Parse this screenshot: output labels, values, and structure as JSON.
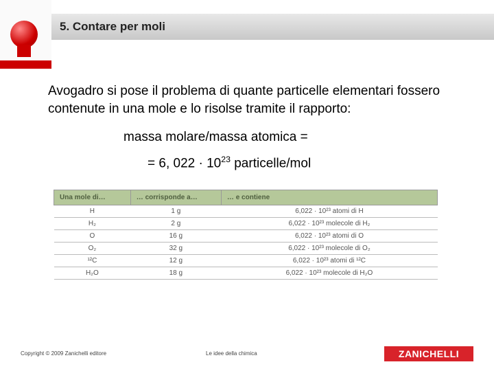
{
  "header": {
    "title": "5. Contare per moli"
  },
  "content": {
    "body_text": "Avogadro si pose il problema di quante particelle elementari fossero contenute in una mole e lo risolse tramite il rapporto:",
    "formula1": "massa molare/massa atomica =",
    "formula2_prefix": "= 6, 022 · 10",
    "formula2_exp": "23",
    "formula2_suffix": " particelle/mol"
  },
  "table": {
    "headers": [
      "Una mole di…",
      "… corrisponde a…",
      "… e contiene"
    ],
    "rows": [
      {
        "c1": "H",
        "c2": "1 g",
        "c3": "6,022 · 10²³ atomi di H"
      },
      {
        "c1": "H₂",
        "c2": "2 g",
        "c3": "6,022 · 10²³ molecole di H₂"
      },
      {
        "c1": "O",
        "c2": "16 g",
        "c3": "6,022 · 10²³ atomi di O"
      },
      {
        "c1": "O₂",
        "c2": "32 g",
        "c3": "6,022 · 10²³ molecole di O₂"
      },
      {
        "c1": "¹²C",
        "c2": "12 g",
        "c3": "6,022 · 10²³ atomi di ¹²C"
      },
      {
        "c1": "H₂O",
        "c2": "18 g",
        "c3": "6,022 · 10²³ molecole di H₂O"
      }
    ],
    "header_bg": "#b5c89a",
    "border_color": "#999999"
  },
  "footer": {
    "copyright": "Copyright © 2009 Zanichelli editore",
    "center": "Le idee della chimica",
    "logo": "ZANICHELLI"
  },
  "colors": {
    "title_gradient_top": "#e8e8e8",
    "title_gradient_bottom": "#c8c8c8",
    "logo_bg": "#d8232a",
    "red": "#cc0000"
  }
}
